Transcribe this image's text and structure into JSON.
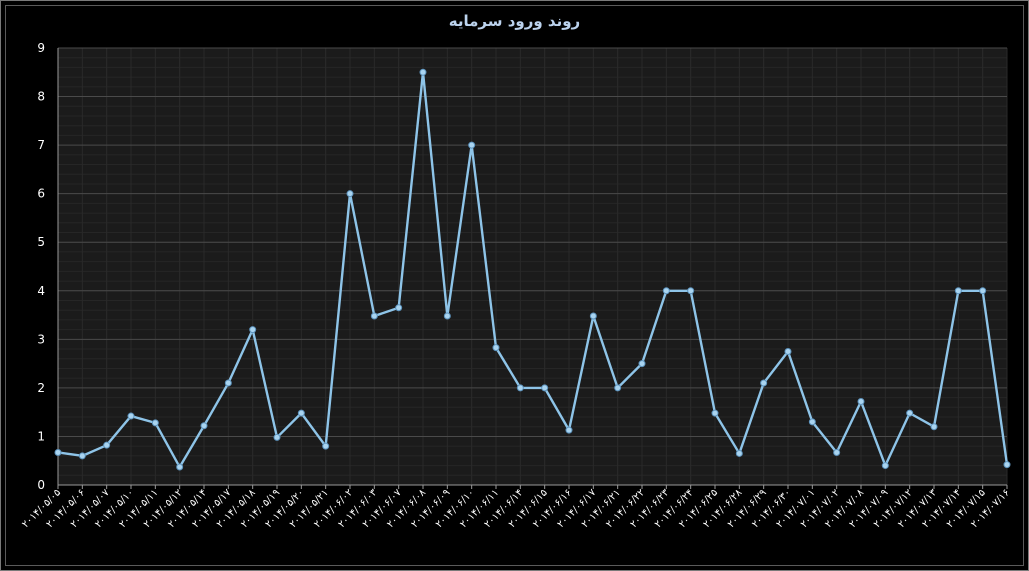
{
  "chart_data": {
    "type": "line",
    "title": "روند ورود سرمایه",
    "xlabel": "",
    "ylabel": "",
    "ylim": [
      0,
      9
    ],
    "yticks": [
      "0",
      "1",
      "2",
      "3",
      "4",
      "5",
      "6",
      "7",
      "8",
      "9"
    ],
    "grid": true,
    "legend": "none",
    "categories": [
      "۲۰۱۴/۰۵/۰۵",
      "۲۰۱۴/۰۵/۰۶",
      "۲۰۱۴/۰۵/۰۷",
      "۲۰۱۴/۰۵/۱۰",
      "۲۰۱۴/۰۵/۱۱",
      "۲۰۱۴/۰۵/۱۲",
      "۲۰۱۴/۰۵/۱۴",
      "۲۰۱۴/۰۵/۱۷",
      "۲۰۱۴/۰۵/۱۸",
      "۲۰۱۴/۰۵/۱۹",
      "۲۰۱۴/۰۵/۲۰",
      "۲۰۱۴/۰۵/۲۱",
      "۲۰۱۴/۰۶/۰۲",
      "۲۰۱۴/۰۶/۰۳",
      "۲۰۱۴/۰۶/۰۷",
      "۲۰۱۴/۰۶/۰۸",
      "۲۰۱۴/۰۶/۰۹",
      "۲۰۱۴/۰۶/۱۰",
      "۲۰۱۴/۰۶/۱۱",
      "۲۰۱۴/۰۶/۱۴",
      "۲۰۱۴/۰۶/۱۵",
      "۲۰۱۴/۰۶/۱۶",
      "۲۰۱۴/۰۶/۱۷",
      "۲۰۱۴/۰۶/۲۱",
      "۲۰۱۴/۰۶/۲۲",
      "۲۰۱۴/۰۶/۲۳",
      "۲۰۱۴/۰۶/۲۴",
      "۲۰۱۴/۰۶/۲۵",
      "۲۰۱۴/۰۶/۲۸",
      "۲۰۱۴/۰۶/۲۹",
      "۲۰۱۴/۰۶/۳۰",
      "۲۰۱۴/۰۷/۰۱",
      "۲۰۱۴/۰۷/۰۲",
      "۲۰۱۴/۰۷/۰۸",
      "۲۰۱۴/۰۷/۰۹",
      "۲۰۱۴/۰۷/۱۲",
      "۲۰۱۴/۰۷/۱۳",
      "۲۰۱۴/۰۷/۱۴",
      "۲۰۱۴/۰۷/۱۵",
      "۲۰۱۴/۰۷/۱۶"
    ],
    "series": [
      {
        "name": "",
        "color": "#8ec4e8",
        "values": [
          0.67,
          0.6,
          0.82,
          1.42,
          1.28,
          0.37,
          1.22,
          2.1,
          3.2,
          0.98,
          1.48,
          0.8,
          6.0,
          3.48,
          3.65,
          8.5,
          3.48,
          7.0,
          2.83,
          2.0,
          2.0,
          1.13,
          3.48,
          2.0,
          2.5,
          4.0,
          4.0,
          1.48,
          0.65,
          2.1,
          2.75,
          1.3,
          0.67,
          1.72,
          0.4,
          1.48,
          1.2,
          4.0,
          4.0,
          0.42
        ]
      }
    ]
  }
}
